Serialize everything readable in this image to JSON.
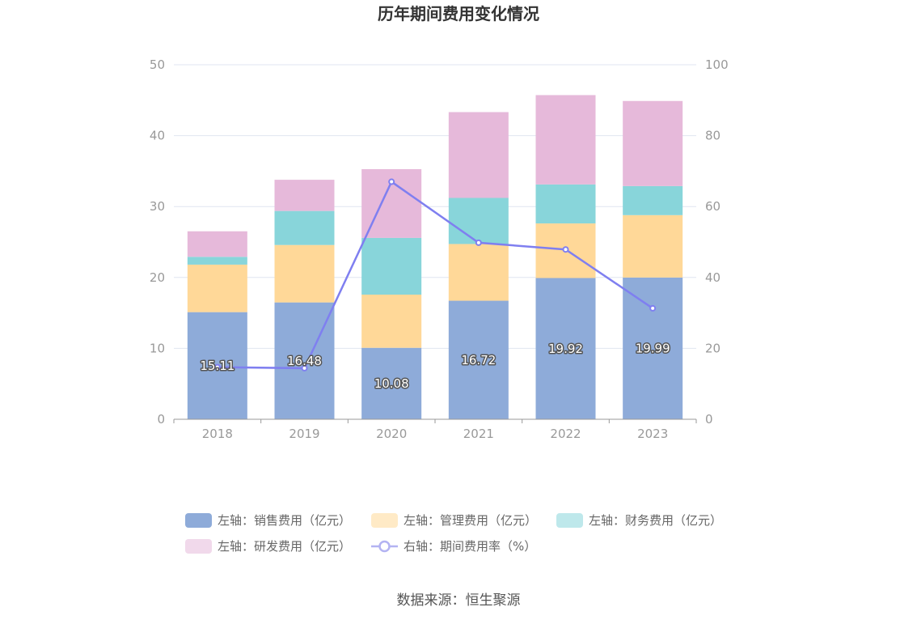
{
  "chart_data": {
    "type": "bar",
    "title": "历年期间费用变化情况",
    "categories": [
      "2018",
      "2019",
      "2020",
      "2021",
      "2022",
      "2023"
    ],
    "stacked": true,
    "series": [
      {
        "name": "左轴：销售费用（亿元）",
        "axis": "left",
        "color": "#8eabd9",
        "values": [
          15.11,
          16.48,
          10.08,
          16.72,
          19.92,
          19.99
        ],
        "labels": [
          "15.11",
          "16.48",
          "10.08",
          "16.72",
          "19.92",
          "19.99"
        ]
      },
      {
        "name": "左轴：管理费用（亿元）",
        "axis": "left",
        "color": "#ffd898",
        "values": [
          6.7,
          8.1,
          7.5,
          8.0,
          7.7,
          8.8
        ]
      },
      {
        "name": "左轴：财务费用（亿元）",
        "axis": "left",
        "color": "#88d5da",
        "values": [
          1.1,
          4.8,
          8.0,
          6.5,
          5.5,
          4.1
        ]
      },
      {
        "name": "左轴：研发费用（亿元）",
        "axis": "left",
        "color": "#e6b9da",
        "values": [
          3.6,
          4.4,
          9.7,
          12.1,
          12.6,
          12.0
        ]
      },
      {
        "name": "右轴：期间费用率（%）",
        "axis": "right",
        "type": "line",
        "color": "#7f7ff0",
        "values": [
          14.7,
          14.4,
          67.0,
          49.8,
          47.9,
          31.3
        ]
      }
    ],
    "y_left": {
      "min": 0,
      "max": 50,
      "ticks": [
        0,
        10,
        20,
        30,
        40,
        50
      ]
    },
    "y_right": {
      "min": 0,
      "max": 100,
      "ticks": [
        0,
        20,
        40,
        60,
        80,
        100
      ]
    },
    "grid": true,
    "legend_position": "bottom"
  },
  "source": "数据来源：恒生聚源"
}
